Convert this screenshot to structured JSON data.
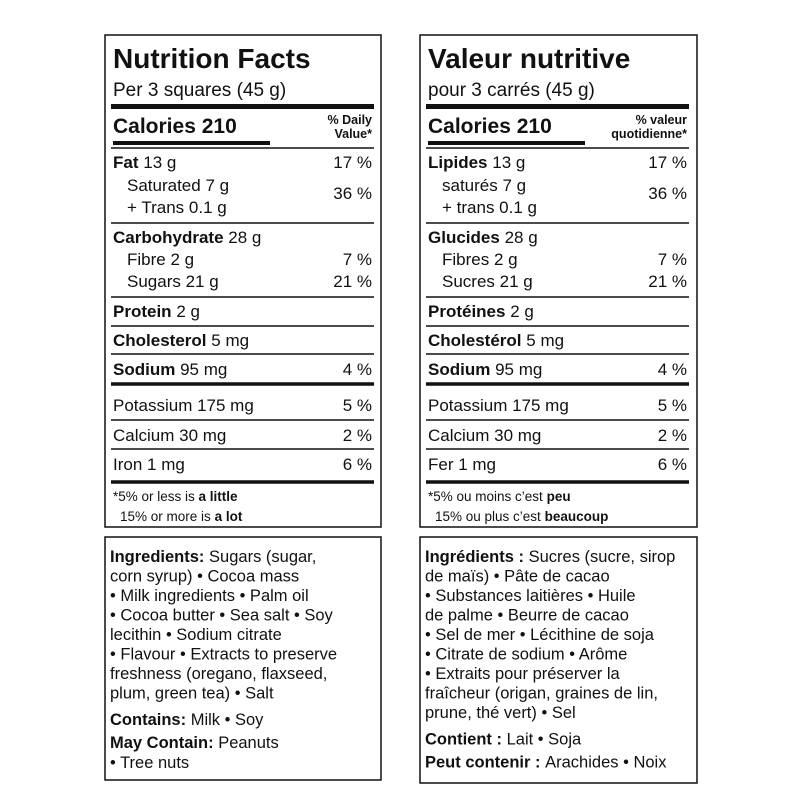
{
  "panels": [
    {
      "title": "Nutrition Facts",
      "serving": "Per 3 squares (45 g)",
      "calories": "Calories 210",
      "dv_header": [
        "% Daily",
        "Value*"
      ],
      "fat": {
        "name": "Fat",
        "amount": "13 g",
        "dv": "17 %"
      },
      "saturated": "Saturated 7 g",
      "trans": "+ Trans 0.1 g",
      "sat_trans_dv": "36 %",
      "carb": {
        "name": "Carbohydrate",
        "amount": "28 g"
      },
      "fibre": {
        "text": "Fibre 2 g",
        "dv": "7 %"
      },
      "sugars": {
        "text": "Sugars 21 g",
        "dv": "21 %"
      },
      "protein": {
        "name": "Protein",
        "amount": "2 g"
      },
      "cholesterol": {
        "name": "Cholesterol",
        "amount": "5 mg"
      },
      "sodium": {
        "name": "Sodium",
        "amount": "95 mg",
        "dv": "4 %"
      },
      "potassium": {
        "text": "Potassium 175 mg",
        "dv": "5 %"
      },
      "calcium": {
        "text": "Calcium 30 mg",
        "dv": "2 %"
      },
      "iron": {
        "text": "Iron 1 mg",
        "dv": "6 %"
      },
      "footnote": [
        {
          "text": "*5% or less is",
          "bold": "a little"
        },
        {
          "text": "15% or more is",
          "bold": "a lot"
        }
      ],
      "ingredients": {
        "label": "Ingredients:",
        "lines": [
          "Sugars (sugar,",
          "corn syrup) • Cocoa mass",
          "• Milk ingredients • Palm oil",
          "• Cocoa butter • Sea salt • Soy",
          "lecithin • Sodium citrate",
          "• Flavour • Extracts to preserve",
          "freshness (oregano, flaxseed,",
          "plum, green tea) • Salt"
        ]
      },
      "contains": {
        "label": "Contains:",
        "text": "Milk • Soy"
      },
      "may_contain": {
        "label": "May Contain:",
        "lines": [
          "Peanuts",
          "• Tree nuts"
        ]
      }
    },
    {
      "title": "Valeur nutritive",
      "serving": "pour 3 carrés (45 g)",
      "calories": "Calories 210",
      "dv_header": [
        "% valeur",
        "quotidienne*"
      ],
      "fat": {
        "name": "Lipides",
        "amount": "13 g",
        "dv": "17 %"
      },
      "saturated": "saturés 7 g",
      "trans": "+ trans 0.1 g",
      "sat_trans_dv": "36 %",
      "carb": {
        "name": "Glucides",
        "amount": "28 g"
      },
      "fibre": {
        "text": "Fibres 2 g",
        "dv": "7 %"
      },
      "sugars": {
        "text": "Sucres 21 g",
        "dv": "21 %"
      },
      "protein": {
        "name": "Protéines",
        "amount": "2 g"
      },
      "cholesterol": {
        "name": "Cholestérol",
        "amount": "5 mg"
      },
      "sodium": {
        "name": "Sodium",
        "amount": "95 mg",
        "dv": "4 %"
      },
      "potassium": {
        "text": "Potassium 175 mg",
        "dv": "5 %"
      },
      "calcium": {
        "text": "Calcium 30 mg",
        "dv": "2 %"
      },
      "iron": {
        "text": "Fer 1 mg",
        "dv": "6 %"
      },
      "footnote": [
        {
          "text": "*5% ou moins c’est",
          "bold": "peu"
        },
        {
          "text": "15% ou plus c’est",
          "bold": "beaucoup"
        }
      ],
      "ingredients": {
        "label": "Ingrédients :",
        "lines": [
          "Sucres (sucre, sirop",
          "de maïs) • Pâte de cacao",
          "• Substances laitières • Huile",
          "de palme • Beurre de cacao",
          "• Sel de mer • Lécithine de soja",
          "• Citrate de sodium • Arôme",
          "• Extraits pour préserver la",
          "fraîcheur (origan, graines de lin,",
          "prune, thé vert) • Sel"
        ]
      },
      "contains": {
        "label": "Contient :",
        "text": "Lait • Soja"
      },
      "may_contain": {
        "label": "Peut contenir :",
        "lines": [
          "Arachides • Noix"
        ]
      }
    }
  ]
}
